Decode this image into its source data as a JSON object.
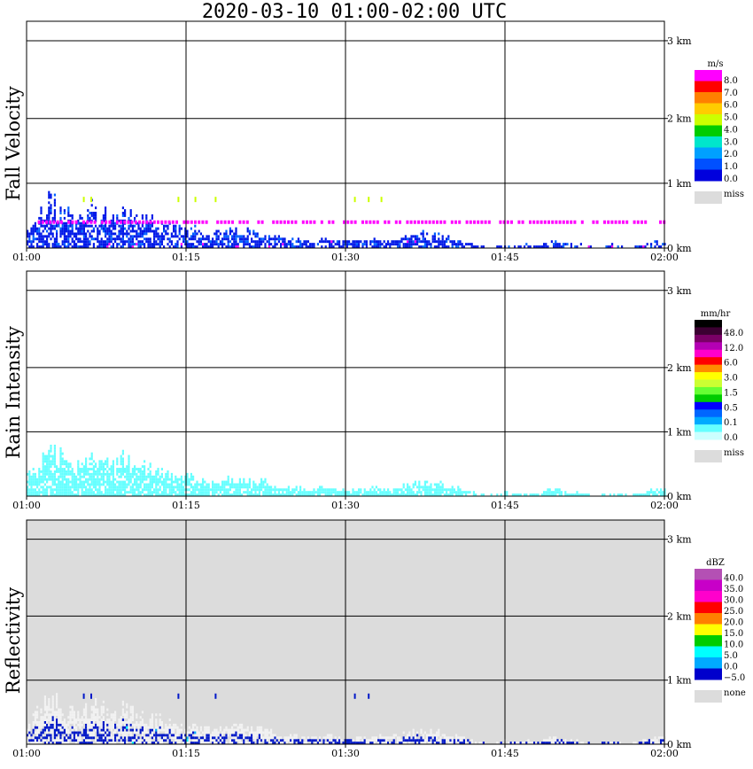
{
  "title": "2020-03-10   01:00-02:00 UTC",
  "colors": {
    "grid": "#000000",
    "missing": "#dcdcdc",
    "background": "#ffffff"
  },
  "chart_data": [
    {
      "type": "heatmap",
      "panel": "fall-velocity",
      "ylabel": "Fall Velocity",
      "x_ticks": [
        "01:00",
        "01:15",
        "01:30",
        "01:45",
        "02:00"
      ],
      "y_ticks": [
        "0 km",
        "1 km",
        "2 km",
        "3 km"
      ],
      "ylim_km": [
        0,
        3.5
      ],
      "xlim_min": [
        0,
        60
      ],
      "colorbar": {
        "unit": "m/s",
        "labels": [
          "8.0",
          "7.0",
          "6.0",
          "5.0",
          "4.0",
          "3.0",
          "2.0",
          "1.0",
          "0.0"
        ],
        "colors": [
          "#ff00ff",
          "#ff0000",
          "#ff8000",
          "#ffcc00",
          "#ccff00",
          "#00cc00",
          "#00e6cc",
          "#00a0ff",
          "#0050ff",
          "#0000dd"
        ],
        "missing_label": "miss"
      },
      "echo": {
        "note": "dominant colors per region",
        "main_color": "#0018e8",
        "secondary_colors": [
          "#0060ff",
          "#ff00ff"
        ],
        "layer_color": "#ff00ff",
        "layer_height_km": 0.4,
        "layer_extent_min": [
          0,
          60
        ],
        "top_height_km": [
          0.3,
          0.55,
          0.8,
          0.7,
          0.55,
          0.5,
          0.7,
          0.6,
          0.55,
          0.65,
          0.5,
          0.5,
          0.45,
          0.4,
          0.35,
          0.3,
          0.3,
          0.25,
          0.25,
          0.3,
          0.3,
          0.25,
          0.25,
          0.2,
          0.15,
          0.15,
          0.1,
          0.1,
          0.15,
          0.1,
          0.1,
          0.1,
          0.12,
          0.15,
          0.1,
          0.15,
          0.2,
          0.25,
          0.2,
          0.2,
          0.15,
          0.1,
          0.05,
          0.0,
          0.0,
          0.05,
          0.0,
          0.05,
          0.0,
          0.1,
          0.1,
          0.05,
          0.05,
          0.0,
          0.0,
          0.05,
          0.0,
          0.0,
          0.05,
          0.1
        ],
        "isolated_points": [
          {
            "t_min": 5.3,
            "h_km": 0.75,
            "color": "#ccff00"
          },
          {
            "t_min": 6.0,
            "h_km": 0.75,
            "color": "#ccff00"
          },
          {
            "t_min": 14.2,
            "h_km": 0.75,
            "color": "#ccff00"
          },
          {
            "t_min": 15.8,
            "h_km": 0.75,
            "color": "#ccff00"
          },
          {
            "t_min": 17.7,
            "h_km": 0.75,
            "color": "#ccff00"
          },
          {
            "t_min": 30.8,
            "h_km": 0.75,
            "color": "#ccff00"
          },
          {
            "t_min": 32.1,
            "h_km": 0.75,
            "color": "#ccff00"
          },
          {
            "t_min": 33.3,
            "h_km": 0.75,
            "color": "#ccff00"
          }
        ]
      }
    },
    {
      "type": "heatmap",
      "panel": "rain-intensity",
      "ylabel": "Rain Intensity",
      "x_ticks": [
        "01:00",
        "01:15",
        "01:30",
        "01:45",
        "02:00"
      ],
      "y_ticks": [
        "0 km",
        "1 km",
        "2 km",
        "3 km"
      ],
      "ylim_km": [
        0,
        3.5
      ],
      "xlim_min": [
        0,
        60
      ],
      "colorbar": {
        "unit": "mm/hr",
        "labels": [
          "48.0",
          "12.0",
          "6.0",
          "3.0",
          "1.5",
          "0.5",
          "0.1",
          "0.0"
        ],
        "colors": [
          "#000000",
          "#3c0032",
          "#7a0066",
          "#b400b4",
          "#ff00cc",
          "#ff0000",
          "#ff8c00",
          "#ffff00",
          "#ccff33",
          "#66ff33",
          "#00cc00",
          "#0000ff",
          "#0066ff",
          "#00aaff",
          "#66ffff",
          "#ccffff"
        ],
        "missing_label": "miss"
      },
      "echo": {
        "note": "dominant color per region",
        "main_color": "#66ffff",
        "top_height_km": [
          0.3,
          0.55,
          0.8,
          0.7,
          0.55,
          0.5,
          0.7,
          0.6,
          0.55,
          0.65,
          0.5,
          0.5,
          0.45,
          0.4,
          0.35,
          0.3,
          0.3,
          0.25,
          0.25,
          0.3,
          0.3,
          0.25,
          0.25,
          0.2,
          0.15,
          0.15,
          0.1,
          0.1,
          0.15,
          0.1,
          0.1,
          0.1,
          0.12,
          0.15,
          0.1,
          0.15,
          0.2,
          0.25,
          0.2,
          0.2,
          0.15,
          0.1,
          0.05,
          0.0,
          0.0,
          0.05,
          0.0,
          0.05,
          0.0,
          0.1,
          0.1,
          0.05,
          0.05,
          0.0,
          0.0,
          0.05,
          0.0,
          0.0,
          0.05,
          0.1
        ]
      }
    },
    {
      "type": "heatmap",
      "panel": "reflectivity",
      "ylabel": "Reflectivity",
      "x_ticks": [
        "01:00",
        "01:15",
        "01:30",
        "01:45",
        "02:00"
      ],
      "y_ticks": [
        "0 km",
        "1 km",
        "2 km",
        "3 km"
      ],
      "ylim_km": [
        0,
        3.5
      ],
      "xlim_min": [
        0,
        60
      ],
      "colorbar": {
        "unit": "dBZ",
        "labels": [
          "40.0",
          "35.0",
          "30.0",
          "25.0",
          "20.0",
          "15.0",
          "10.0",
          "5.0",
          "0.0",
          "−5.0"
        ],
        "colors": [
          "#b450b4",
          "#c800c8",
          "#ff00cc",
          "#ff0000",
          "#ff8000",
          "#ffff00",
          "#00cc00",
          "#00ffff",
          "#00aaff",
          "#0000cc"
        ],
        "missing_label": "none"
      },
      "echo": {
        "note": "dominant colors per region; background shows 'none' shading",
        "background_color": "#dcdcdc",
        "main_color": "#0018c8",
        "low_color": "#f2f2f2",
        "core_colors": [
          "#00aaff",
          "#00ffff"
        ],
        "top_height_km": [
          0.3,
          0.55,
          0.8,
          0.7,
          0.55,
          0.5,
          0.7,
          0.6,
          0.55,
          0.65,
          0.5,
          0.5,
          0.45,
          0.4,
          0.35,
          0.3,
          0.3,
          0.25,
          0.25,
          0.3,
          0.3,
          0.25,
          0.25,
          0.2,
          0.15,
          0.15,
          0.1,
          0.1,
          0.15,
          0.1,
          0.1,
          0.1,
          0.12,
          0.15,
          0.1,
          0.15,
          0.2,
          0.25,
          0.2,
          0.2,
          0.15,
          0.1,
          0.05,
          0.0,
          0.0,
          0.05,
          0.0,
          0.05,
          0.0,
          0.1,
          0.1,
          0.05,
          0.05,
          0.0,
          0.0,
          0.05,
          0.0,
          0.0,
          0.05,
          0.1
        ],
        "isolated_points": [
          {
            "t_min": 5.3,
            "h_km": 0.75,
            "color": "#0018c8"
          },
          {
            "t_min": 6.0,
            "h_km": 0.75,
            "color": "#0018c8"
          },
          {
            "t_min": 14.2,
            "h_km": 0.75,
            "color": "#0018c8"
          },
          {
            "t_min": 17.7,
            "h_km": 0.75,
            "color": "#0018c8"
          },
          {
            "t_min": 30.8,
            "h_km": 0.75,
            "color": "#0018c8"
          },
          {
            "t_min": 32.1,
            "h_km": 0.75,
            "color": "#0018c8"
          }
        ]
      }
    }
  ]
}
